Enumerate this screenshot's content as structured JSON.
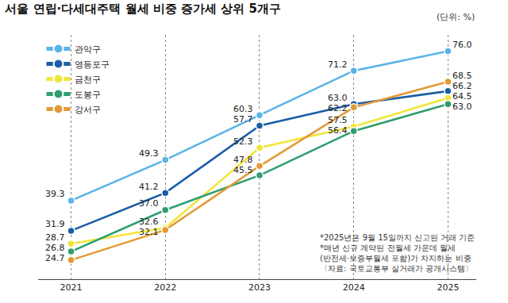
{
  "chart_data": {
    "type": "line",
    "title": "서울 연립·다세대주택 월세 비중 증가세 상위 5개구",
    "subtitle": "(단위: %)",
    "annotations": [
      "*2025년은 9월 15일까지 신고된 거래 기준",
      "*매년 신규 계약된 전월세 가운데 월세",
      "(반전세·보증부월세 포함)가 차지하는 비중",
      "〈자료: 국토교통부 실거래가 공개시스템〉"
    ],
    "categories": [
      "2021",
      "2022",
      "2023",
      "2024",
      "2025"
    ],
    "series": [
      {
        "name": "관악구",
        "color": "#5ab4e6",
        "values": [
          39.3,
          49.3,
          60.3,
          71.2,
          76.0
        ],
        "value_labels": [
          "39.3",
          "49.3",
          "60.3",
          "71.2",
          "76.0"
        ]
      },
      {
        "name": "영등포구",
        "color": "#1b5ea6",
        "values": [
          31.9,
          41.2,
          57.7,
          63.0,
          66.2
        ],
        "value_labels": [
          "31.9",
          "41.2",
          "57.7",
          "63.0",
          "66.2"
        ]
      },
      {
        "name": "금천구",
        "color": "#f2e53a",
        "values": [
          28.7,
          32.6,
          52.3,
          57.5,
          64.5
        ],
        "value_labels": [
          "28.7",
          "32.6",
          "52.3",
          "57.5",
          "64.5"
        ]
      },
      {
        "name": "도봉구",
        "color": "#2e9e6e",
        "values": [
          26.8,
          37.0,
          45.5,
          56.4,
          63.0
        ],
        "value_labels": [
          "26.8",
          "37.0",
          "45.5",
          "56.4",
          "63.0"
        ]
      },
      {
        "name": "강서구",
        "color": "#e39a36",
        "values": [
          24.7,
          32.1,
          47.8,
          62.2,
          68.5
        ],
        "value_labels": [
          "24.7",
          "32.1",
          "47.8",
          "62.2",
          "68.5"
        ]
      }
    ],
    "ylim": [
      20,
      80
    ],
    "data_labels": true,
    "tick_labels": "x",
    "grid": true,
    "legend": "top-left",
    "marker": "circle",
    "line_style": "solid"
  }
}
